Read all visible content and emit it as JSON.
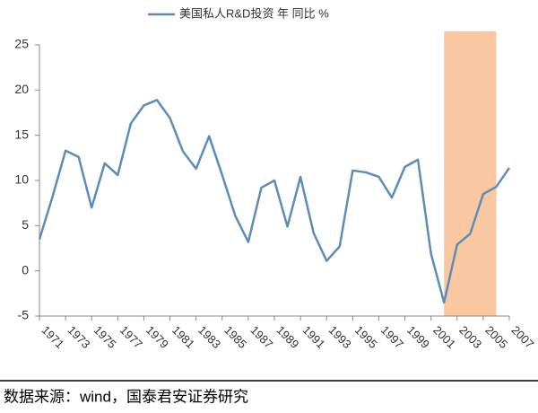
{
  "chart_data": {
    "type": "line",
    "legend_text": "美国私人R&D投资 年 同比 %",
    "source": "数据来源：wind，国泰君安证券研究",
    "x": [
      1971,
      1972,
      1973,
      1974,
      1975,
      1976,
      1977,
      1978,
      1979,
      1980,
      1981,
      1982,
      1983,
      1984,
      1985,
      1986,
      1987,
      1988,
      1989,
      1990,
      1991,
      1992,
      1993,
      1994,
      1995,
      1996,
      1997,
      1998,
      1999,
      2000,
      2001,
      2002,
      2003,
      2004,
      2005,
      2006,
      2007
    ],
    "series": [
      {
        "name": "美国私人R&D投资 年 同比 %",
        "color": "#5b8db8",
        "values": [
          3.5,
          8.2,
          13.3,
          12.6,
          7.0,
          11.9,
          10.6,
          16.3,
          18.3,
          18.9,
          16.9,
          13.2,
          11.3,
          14.9,
          10.6,
          6.1,
          3.2,
          9.2,
          10.0,
          4.9,
          10.4,
          4.2,
          1.1,
          2.7,
          11.1,
          10.9,
          10.4,
          8.1,
          11.5,
          12.3,
          1.9,
          -3.5,
          2.9,
          4.1,
          8.5,
          9.3,
          11.4
        ]
      }
    ],
    "xlim": [
      1971,
      2007
    ],
    "xticks": [
      1971,
      1973,
      1975,
      1977,
      1979,
      1981,
      1983,
      1985,
      1987,
      1989,
      1991,
      1993,
      1995,
      1997,
      1999,
      2001,
      2003,
      2005,
      2007
    ],
    "ylim": [
      -5,
      25
    ],
    "yticks": [
      -5,
      0,
      5,
      10,
      15,
      20,
      25
    ],
    "shade": [
      2002,
      2006
    ],
    "shade_color": "#f9c8a0"
  }
}
